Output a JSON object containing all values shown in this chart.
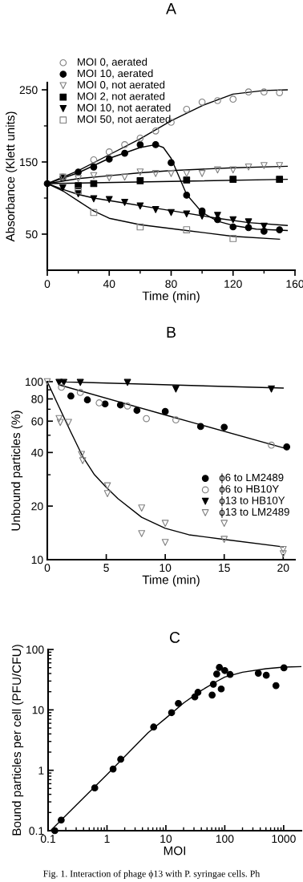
{
  "chart_data": [
    {
      "type": "scatter",
      "title": "A",
      "xlabel": "Time (min)",
      "ylabel": "Absorbance (Klett units)",
      "xlim": [
        0,
        160
      ],
      "ylim": [
        0,
        260
      ],
      "xticks": [
        0,
        {
          "value": 20,
          "label": null
        },
        40,
        {
          "value": 60,
          "label": null
        },
        80,
        {
          "value": 100,
          "label": null
        },
        120,
        {
          "value": 140,
          "label": null
        },
        160
      ],
      "yticks": [
        50,
        {
          "value": 100,
          "label": null
        },
        150,
        {
          "value": 200,
          "label": null
        },
        250
      ],
      "legend": "top left",
      "series": [
        {
          "name": "MOI 0, aerated",
          "color": "#808080",
          "marker": "circle-open",
          "x": [
            10,
            20,
            30,
            40,
            50,
            60,
            70,
            80,
            90,
            100,
            110,
            120,
            130,
            140,
            150
          ],
          "values": [
            129,
            null,
            153,
            164,
            174,
            183,
            193,
            205,
            223,
            233,
            235,
            237,
            247,
            247,
            246
          ]
        },
        {
          "name": "MOI 10, aerated",
          "color": "#000000",
          "marker": "circle",
          "x": [
            0,
            10,
            20,
            30,
            40,
            50,
            60,
            70,
            80,
            90,
            100,
            110,
            120,
            130,
            140,
            150
          ],
          "values": [
            120,
            128,
            136,
            143,
            154,
            162,
            174,
            174,
            149,
            104,
            82,
            70,
            60,
            59,
            54,
            56
          ]
        },
        {
          "name": "MOI 0, not aerated",
          "color": "#808080",
          "marker": "triangle-down-open",
          "x": [
            10,
            20,
            30,
            40,
            50,
            60,
            70,
            80,
            90,
            100,
            110,
            120,
            130,
            140,
            150
          ],
          "values": [
            129,
            127,
            131,
            128,
            129,
            136,
            134,
            134,
            134,
            134,
            139,
            139,
            143,
            145,
            145
          ]
        },
        {
          "name": "MOI 2, not aerated",
          "color": "#000000",
          "marker": "square",
          "x": [
            20,
            30,
            60,
            90,
            120,
            150
          ],
          "values": [
            117,
            120,
            124,
            125,
            126,
            126
          ]
        },
        {
          "name": "MOI 10, not aerated",
          "color": "#000000",
          "marker": "triangle-down",
          "x": [
            10,
            20,
            30,
            40,
            50,
            60,
            70,
            80,
            90,
            100,
            110,
            120,
            130,
            140
          ],
          "values": [
            114,
            106,
            99,
            98,
            94,
            89,
            84,
            80,
            78,
            75,
            76,
            70,
            67,
            61
          ]
        },
        {
          "name": "MOI 50, not aerated",
          "color": "#808080",
          "marker": "square-open",
          "x": [
            20,
            30,
            60,
            90,
            120
          ],
          "values": [
            110,
            80,
            60,
            56,
            44
          ]
        },
        {
          "type": "line",
          "color": "#000000",
          "x": [
            0,
            20,
            40,
            60,
            80,
            100,
            120,
            140,
            155
          ],
          "values": [
            120,
            138,
            160,
            182,
            207,
            228,
            244,
            249,
            250
          ]
        },
        {
          "type": "line",
          "color": "#000000",
          "x": [
            0,
            20,
            40,
            60,
            70,
            75,
            80,
            85,
            90,
            100,
            110,
            120,
            135,
            155
          ],
          "values": [
            120,
            135,
            155,
            170,
            174,
            170,
            155,
            130,
            105,
            80,
            68,
            62,
            57,
            55
          ]
        },
        {
          "type": "line",
          "color": "#000000",
          "x": [
            0,
            20,
            40,
            60,
            80,
            100,
            120,
            155
          ],
          "values": [
            120,
            127,
            131,
            135,
            138,
            140,
            142,
            144
          ]
        },
        {
          "type": "line",
          "color": "#000000",
          "x": [
            0,
            80,
            155
          ],
          "values": [
            120,
            123,
            126
          ]
        },
        {
          "type": "line",
          "color": "#000000",
          "x": [
            0,
            10,
            20,
            30,
            50,
            70,
            90,
            110,
            130,
            155
          ],
          "values": [
            120,
            112,
            105,
            100,
            93,
            86,
            79,
            72,
            66,
            62
          ]
        },
        {
          "type": "line",
          "color": "#000000",
          "x": [
            0,
            10,
            20,
            30,
            40,
            60,
            90,
            120,
            150
          ],
          "values": [
            120,
            110,
            96,
            82,
            72,
            63,
            55,
            47,
            43
          ]
        }
      ]
    },
    {
      "type": "scatter",
      "title": "B",
      "xlabel": "Time (min)",
      "ylabel": "Unbound particles (%)",
      "log": "y",
      "xlim": [
        0,
        21
      ],
      "ylim": [
        10,
        100
      ],
      "xticks": [
        0,
        5,
        10,
        15,
        20
      ],
      "yticks": [
        10,
        20,
        {
          "value": 30,
          "label": null
        },
        40,
        {
          "value": 50,
          "label": null
        },
        60,
        {
          "value": 70,
          "label": null
        },
        80,
        {
          "value": 90,
          "label": null
        },
        100
      ],
      "legend": "right",
      "series": [
        {
          "name": "ϕ6 to LM2489",
          "color": "#000000",
          "marker": "circle",
          "x": [
            2,
            3.4,
            4.9,
            6.2,
            7.6,
            10,
            13,
            15,
            20.3
          ],
          "values": [
            83,
            79,
            75,
            74,
            69,
            68,
            56,
            55.5,
            43
          ]
        },
        {
          "name": "ϕ6 to HB10Y",
          "color": "#808080",
          "marker": "circle-open",
          "x": [
            1.2,
            2.8,
            4.4,
            6.8,
            8.4,
            10.9,
            19
          ],
          "values": [
            93,
            87,
            76,
            73,
            62,
            61,
            44
          ]
        },
        {
          "name": "ϕ13 to HB10Y",
          "color": "#000000",
          "marker": "triangle-down",
          "x": [
            1,
            1.4,
            2.8,
            6.8,
            10.9,
            19
          ],
          "values": [
            99,
            99,
            99,
            99,
            91,
            91
          ]
        },
        {
          "name": "ϕ13 to LM2489",
          "color": "#808080",
          "marker": "triangle-down-open",
          "x": [
            0,
            1,
            1.1,
            1.8,
            2.9,
            3,
            5.1,
            5.1,
            8,
            8,
            10,
            10,
            15,
            15,
            20,
            20
          ],
          "values": [
            100,
            62,
            59,
            59,
            39,
            36,
            26,
            23.5,
            19.5,
            14,
            16,
            12.5,
            16,
            13,
            11.4,
            10.8
          ]
        },
        {
          "type": "line",
          "color": "#000000",
          "x": [
            1,
            10,
            20.3
          ],
          "values": [
            96,
            65,
            42
          ]
        },
        {
          "type": "line",
          "color": "#000000",
          "x": [
            1,
            20
          ],
          "values": [
            100,
            92
          ]
        },
        {
          "type": "line",
          "color": "#000000",
          "x": [
            0,
            1,
            2,
            3,
            4,
            5,
            6,
            8,
            10,
            12,
            15,
            20
          ],
          "values": [
            100,
            72,
            52,
            38,
            30,
            25.5,
            22,
            17.3,
            15,
            13.8,
            13,
            11.8
          ]
        }
      ]
    },
    {
      "type": "scatter",
      "title": "C",
      "xlabel": "MOI",
      "ylabel": "Bound particles per cell (PFU/CFU)",
      "log": "xy",
      "xlim": [
        0.1,
        2000
      ],
      "ylim": [
        0.1,
        100
      ],
      "xticks": [
        0.1,
        {
          "value": 0.2,
          "label": null
        },
        {
          "value": 0.3,
          "label": null
        },
        {
          "value": 0.4,
          "label": null
        },
        {
          "value": 0.5,
          "label": null
        },
        {
          "value": 0.6,
          "label": null
        },
        {
          "value": 0.7,
          "label": null
        },
        {
          "value": 0.8,
          "label": null
        },
        {
          "value": 0.9,
          "label": null
        },
        1,
        {
          "value": 2,
          "label": null
        },
        {
          "value": 3,
          "label": null
        },
        {
          "value": 4,
          "label": null
        },
        {
          "value": 5,
          "label": null
        },
        {
          "value": 6,
          "label": null
        },
        {
          "value": 7,
          "label": null
        },
        {
          "value": 8,
          "label": null
        },
        {
          "value": 9,
          "label": null
        },
        10,
        {
          "value": 20,
          "label": null
        },
        {
          "value": 30,
          "label": null
        },
        {
          "value": 40,
          "label": null
        },
        {
          "value": 50,
          "label": null
        },
        {
          "value": 60,
          "label": null
        },
        {
          "value": 70,
          "label": null
        },
        {
          "value": 80,
          "label": null
        },
        {
          "value": 90,
          "label": null
        },
        100,
        {
          "value": 200,
          "label": null
        },
        {
          "value": 300,
          "label": null
        },
        {
          "value": 400,
          "label": null
        },
        {
          "value": 500,
          "label": null
        },
        {
          "value": 600,
          "label": null
        },
        {
          "value": 700,
          "label": null
        },
        {
          "value": 800,
          "label": null
        },
        {
          "value": 900,
          "label": null
        },
        1000
      ],
      "yticks": [
        0.1,
        {
          "value": 0.2,
          "label": null
        },
        {
          "value": 0.3,
          "label": null
        },
        {
          "value": 0.4,
          "label": null
        },
        {
          "value": 0.5,
          "label": null
        },
        {
          "value": 0.6,
          "label": null
        },
        {
          "value": 0.7,
          "label": null
        },
        {
          "value": 0.8,
          "label": null
        },
        {
          "value": 0.9,
          "label": null
        },
        1,
        {
          "value": 2,
          "label": null
        },
        {
          "value": 3,
          "label": null
        },
        {
          "value": 4,
          "label": null
        },
        {
          "value": 5,
          "label": null
        },
        {
          "value": 6,
          "label": null
        },
        {
          "value": 7,
          "label": null
        },
        {
          "value": 8,
          "label": null
        },
        {
          "value": 9,
          "label": null
        },
        10,
        {
          "value": 20,
          "label": null
        },
        {
          "value": 30,
          "label": null
        },
        {
          "value": 40,
          "label": null
        },
        {
          "value": 50,
          "label": null
        },
        {
          "value": 60,
          "label": null
        },
        {
          "value": 70,
          "label": null
        },
        {
          "value": 80,
          "label": null
        },
        {
          "value": 90,
          "label": null
        },
        100
      ],
      "annotations": [
        "Fig. 1. Interaction of phage ϕ13 with P. syringae cells. Ph"
      ],
      "series": [
        {
          "color": "#000000",
          "marker": "circle",
          "x": [
            0.13,
            0.167,
            0.62,
            1.27,
            1.71,
            6.2,
            12.5,
            16.3,
            31,
            35,
            61,
            64,
            73,
            81,
            87,
            100,
            123,
            371,
            506,
            740,
            1010
          ],
          "values": [
            0.1,
            0.15,
            0.51,
            1.05,
            1.52,
            5.2,
            9.0,
            12.8,
            16.4,
            19.5,
            17.6,
            26.6,
            39.3,
            50.5,
            22.2,
            44.8,
            38.5,
            40.5,
            37.4,
            25.2,
            49.6
          ]
        },
        {
          "type": "line",
          "color": "#000000",
          "x": [
            0.11,
            1,
            5,
            10,
            20,
            40,
            70,
            100,
            200,
            500,
            1000,
            2000
          ],
          "values": [
            0.1,
            0.85,
            4.2,
            7.3,
            13,
            21,
            29,
            35,
            42,
            48,
            51,
            52
          ]
        }
      ]
    }
  ]
}
